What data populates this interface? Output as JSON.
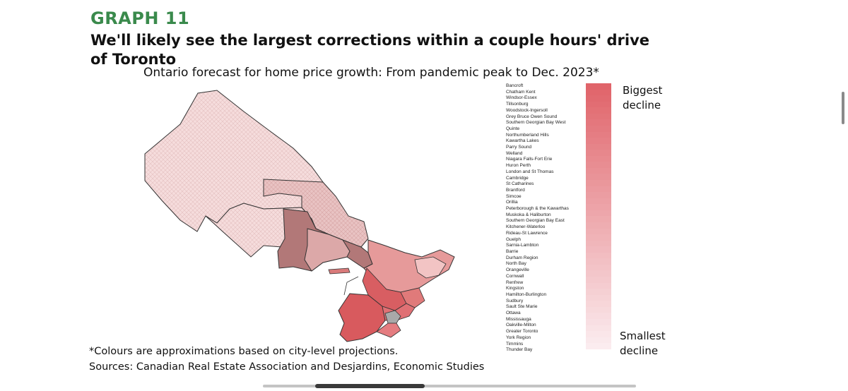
{
  "graph_label": "GRAPH 11",
  "headline": "We'll likely see the largest corrections within a couple hours' drive of Toronto",
  "chart_data": {
    "type": "heatmap",
    "title": "Ontario forecast for home price growth: From pandemic peak to Dec. 2023*",
    "ranking_order": "biggest decline first",
    "regions": [
      "Bancroft",
      "Chatham Kent",
      "Windsor-Essex",
      "Tillsonburg",
      "Woodstock-Ingersoll",
      "Grey Bruce Owen Sound",
      "Southern Georgian Bay West",
      "Quinte",
      "Northumberland Hills",
      "Kawartha Lakes",
      "Parry Sound",
      "Welland",
      "Niagara Falls-Fort Erie",
      "Huron Perth",
      "London and St Thomas",
      "Cambridge",
      "St Catharines",
      "Brantford",
      "Simcoe",
      "Orillia",
      "Peterborough & the Kawarthas",
      "Muskoka & Haliburton",
      "Southern Georgian Bay East",
      "Kitchener-Waterloo",
      "Rideau-St Lawrence",
      "Guelph",
      "Sarnia-Lambton",
      "Barrie",
      "Durham Region",
      "North Bay",
      "Orangeville",
      "Cornwall",
      "Renfrew",
      "Kingston",
      "Hamilton-Burlington",
      "Sudbury",
      "Sault Ste Marie",
      "Ottawa",
      "Mississauga",
      "Oakville-Milton",
      "Greater Toronto",
      "York Region",
      "Timmins",
      "Thunder Bay"
    ],
    "legend": {
      "top": "Biggest decline",
      "bottom": "Smallest decline"
    },
    "colors": {
      "biggest": "#e0646a",
      "smallest": "#fbecef",
      "dark_region": "#b07474",
      "toronto": "#a9a9a9"
    }
  },
  "scale_labels": {
    "top_line1": "Biggest",
    "top_line2": "decline",
    "bottom_line1": "Smallest",
    "bottom_line2": "decline"
  },
  "footnote": "*Colours are approximations based on city-level projections.",
  "source": "Sources: Canadian Real Estate Association and Desjardins, Economic Studies"
}
